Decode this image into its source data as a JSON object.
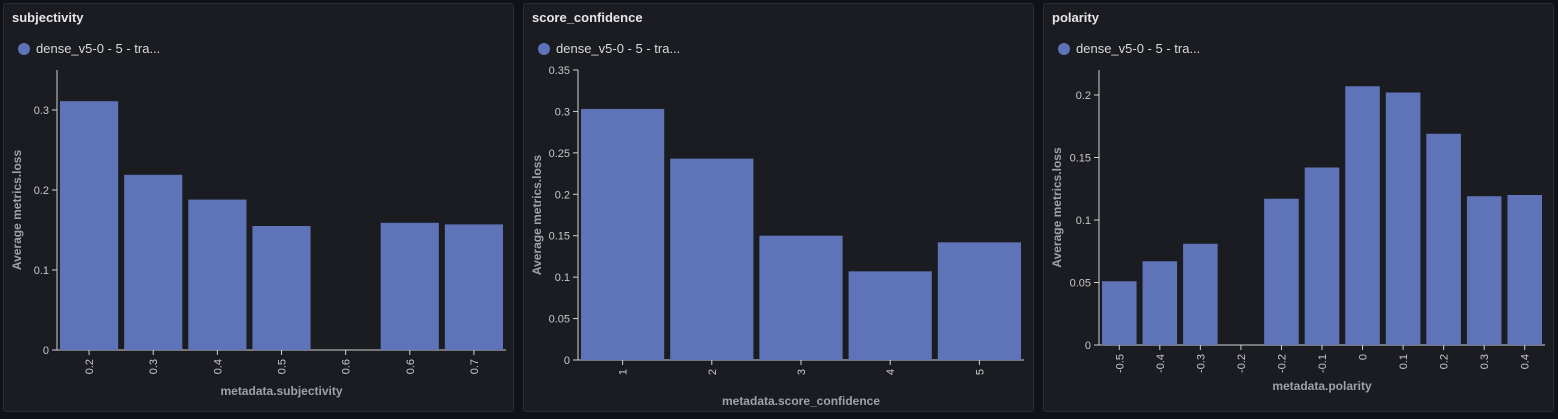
{
  "series_color": "#5f74b8",
  "legend_label": "dense_v5-0 - 5 - tra...",
  "chart_data": [
    {
      "type": "bar",
      "title": "subjectivity",
      "xlabel": "metadata.subjectivity",
      "ylabel": "Average metrics.loss",
      "categories": [
        "0.2",
        "0.3",
        "0.4",
        "0.5",
        "0.6",
        "0.6",
        "0.7"
      ],
      "values": [
        0.311,
        0.219,
        0.188,
        0.155,
        null,
        0.159,
        0.157
      ],
      "ylim": [
        0,
        0.35
      ],
      "yticks": [
        "0",
        "0.1",
        "0.2",
        "0.3"
      ],
      "ytick_values": [
        0,
        0.1,
        0.2,
        0.3
      ],
      "series": [
        {
          "name": "dense_v5-0 - 5 - tra...",
          "values": [
            0.311,
            0.219,
            0.188,
            0.155,
            null,
            0.159,
            0.157
          ]
        }
      ]
    },
    {
      "type": "bar",
      "title": "score_confidence",
      "xlabel": "metadata.score_confidence",
      "ylabel": "Average metrics.loss",
      "categories": [
        "1",
        "2",
        "3",
        "4",
        "5"
      ],
      "values": [
        0.303,
        0.243,
        0.15,
        0.107,
        0.142
      ],
      "ylim": [
        0,
        0.35
      ],
      "yticks": [
        "0",
        "0.05",
        "0.1",
        "0.15",
        "0.2",
        "0.25",
        "0.3",
        "0.35"
      ],
      "ytick_values": [
        0,
        0.05,
        0.1,
        0.15,
        0.2,
        0.25,
        0.3,
        0.35
      ],
      "series": [
        {
          "name": "dense_v5-0 - 5 - tra...",
          "values": [
            0.303,
            0.243,
            0.15,
            0.107,
            0.142
          ]
        }
      ]
    },
    {
      "type": "bar",
      "title": "polarity",
      "xlabel": "metadata.polarity",
      "ylabel": "Average metrics.loss",
      "categories": [
        "-0.5",
        "-0.4",
        "-0.3",
        "-0.2",
        "-0.2",
        "-0.1",
        "0",
        "0.1",
        "0.2",
        "0.3",
        "0.4"
      ],
      "values": [
        0.051,
        0.067,
        0.081,
        null,
        0.117,
        0.142,
        0.207,
        0.202,
        0.169,
        0.119,
        0.12
      ],
      "ylim": [
        0,
        0.22
      ],
      "yticks": [
        "0",
        "0.05",
        "0.1",
        "0.15",
        "0.2"
      ],
      "ytick_values": [
        0,
        0.05,
        0.1,
        0.15,
        0.2
      ],
      "series": [
        {
          "name": "dense_v5-0 - 5 - tra...",
          "values": [
            0.051,
            0.067,
            0.081,
            null,
            0.117,
            0.142,
            0.207,
            0.202,
            0.169,
            0.119,
            0.12
          ]
        }
      ]
    }
  ]
}
